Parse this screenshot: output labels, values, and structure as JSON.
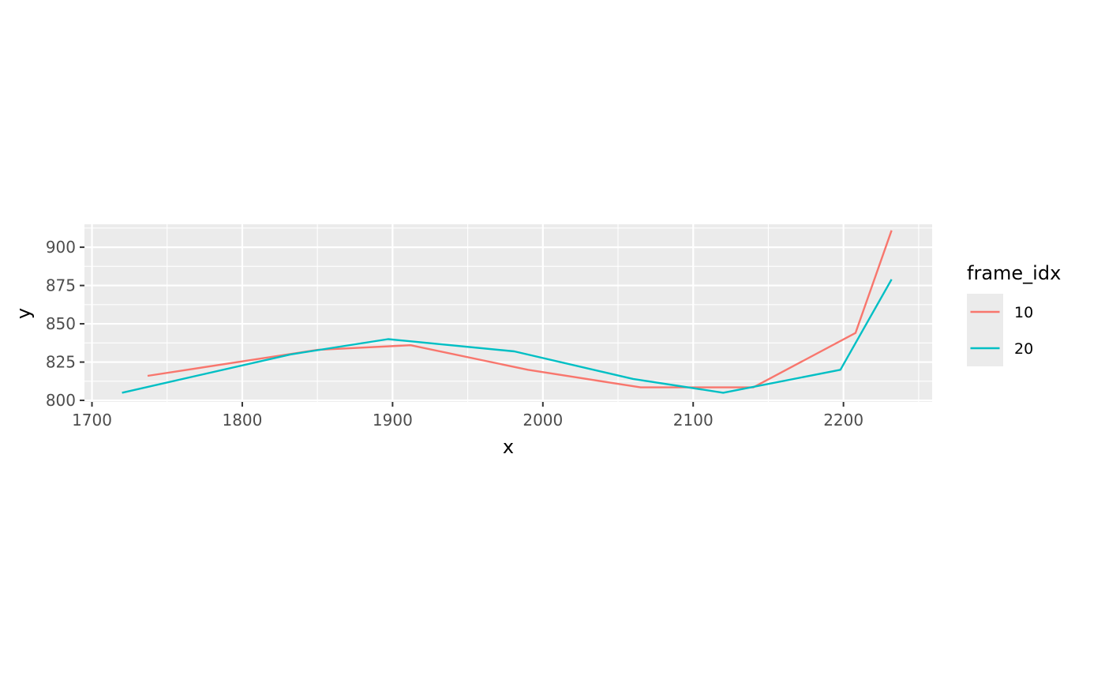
{
  "chart_data": {
    "type": "line",
    "title": "",
    "xlabel": "x",
    "ylabel": "y",
    "xlim": [
      1695,
      2259
    ],
    "ylim": [
      799,
      915
    ],
    "x_ticks": [
      1700,
      1800,
      1900,
      2000,
      2100,
      2200
    ],
    "x_tick_labels": [
      "1700",
      "1800",
      "1900",
      "2000",
      "2100",
      "2200"
    ],
    "y_ticks": [
      800,
      825,
      850,
      875,
      900
    ],
    "y_tick_labels": [
      "800",
      "825",
      "850",
      "875",
      "900"
    ],
    "grid": true,
    "legend": {
      "title": "frame_idx",
      "position": "right"
    },
    "series": [
      {
        "name": "10",
        "color": "#F8766D",
        "x": [
          1737,
          1850,
          1912,
          1990,
          2065,
          2140,
          2208,
          2232
        ],
        "y": [
          816,
          833,
          836,
          820,
          808.5,
          808.5,
          844,
          911
        ]
      },
      {
        "name": "20",
        "color": "#00BFC4",
        "x": [
          1720,
          1832,
          1897,
          1981,
          2060,
          2120,
          2198,
          2232
        ],
        "y": [
          805,
          830,
          840,
          832,
          814,
          805,
          820,
          879
        ]
      }
    ]
  }
}
